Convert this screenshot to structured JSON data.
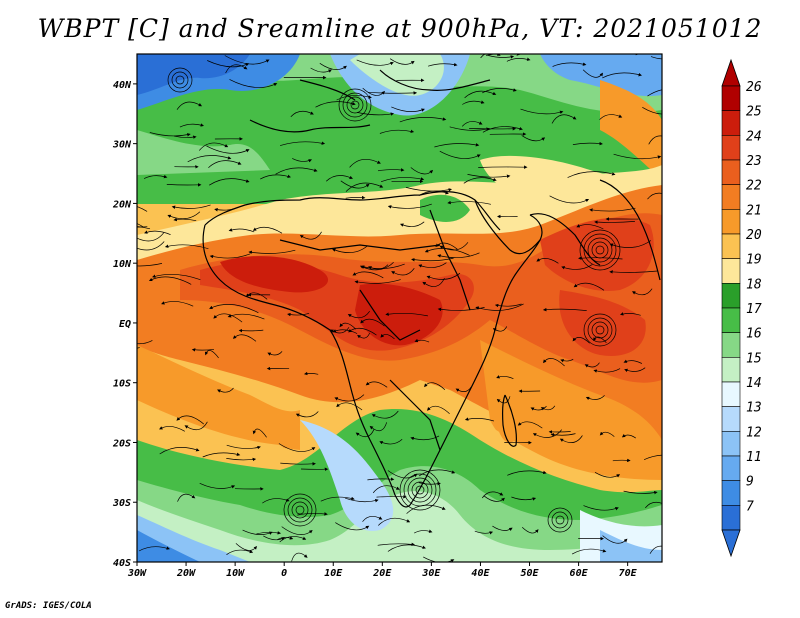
{
  "title": "WBPT [C] and Sreamline at 900hPa, VT: 2021051012",
  "credit": "GrADS: IGES/COLA",
  "map": {
    "lon_labels": [
      "30W",
      "20W",
      "10W",
      "0",
      "10E",
      "20E",
      "30E",
      "40E",
      "50E",
      "60E",
      "70E"
    ],
    "lat_labels": [
      "40N",
      "30N",
      "20N",
      "10N",
      "EQ",
      "10S",
      "20S",
      "30S",
      "40S"
    ],
    "lon_range": [
      -30,
      77
    ],
    "lat_range": [
      -40,
      45
    ]
  },
  "colorbar": {
    "labels": [
      "26",
      "25",
      "24",
      "23",
      "22",
      "21",
      "20",
      "19",
      "18",
      "17",
      "16",
      "15",
      "14",
      "13",
      "12",
      "11",
      "9",
      "7"
    ],
    "colors": [
      "#b00000",
      "#cc1d0c",
      "#e0401a",
      "#ea5f1e",
      "#f27d22",
      "#f79a2a",
      "#fbc252",
      "#fde79a",
      "#2a9f2a",
      "#47bd47",
      "#86d886",
      "#c4f0c4",
      "#e8f8ff",
      "#b6dafc",
      "#8cc3f6",
      "#66aaf0",
      "#3e8ce4",
      "#2a6fd6"
    ]
  }
}
